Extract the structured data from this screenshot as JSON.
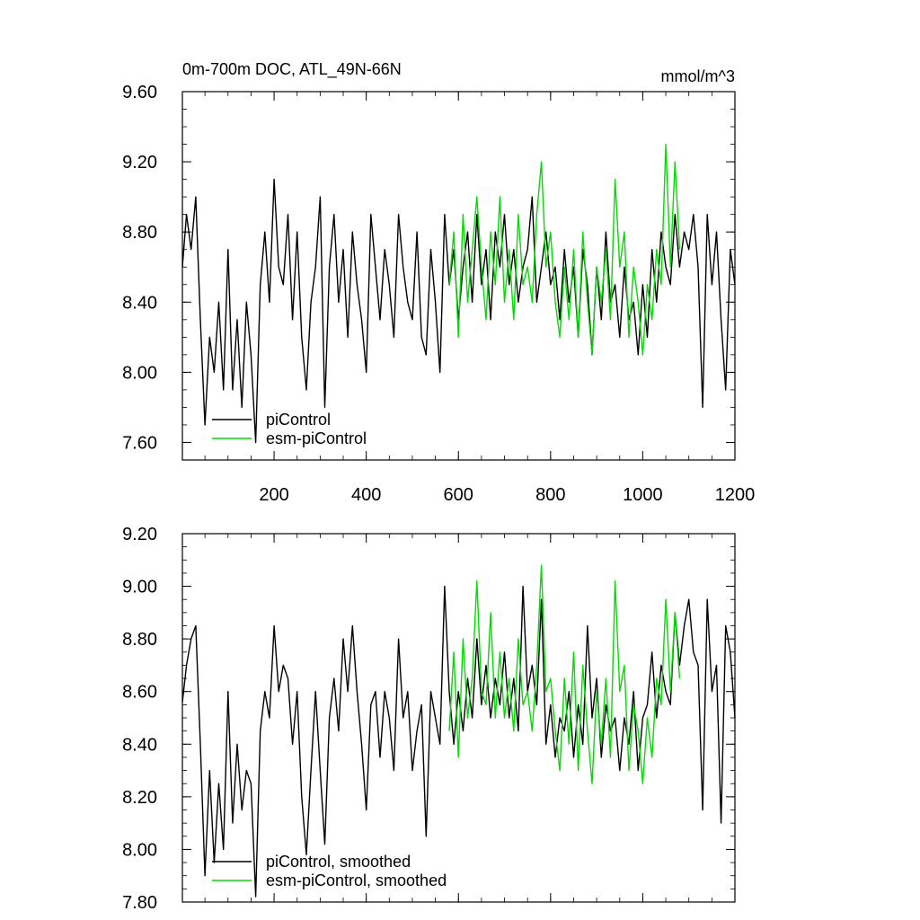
{
  "figure": {
    "title_left": "0m-700m DOC, ATL_49N-66N",
    "title_right": "mmol/m^3"
  },
  "chart_data": [
    {
      "type": "line",
      "title": "0m-700m DOC, ATL_49N-66N",
      "units": "mmol/m^3",
      "xlim": [
        1,
        1200
      ],
      "ylim": [
        7.5,
        9.6
      ],
      "xticks": [
        200,
        400,
        600,
        800,
        1000,
        1200
      ],
      "xtick_labels": [
        "200",
        "400",
        "600",
        "800",
        "1000",
        "1200"
      ],
      "yticks": [
        7.6,
        8.0,
        8.4,
        8.8,
        9.2,
        9.6
      ],
      "ytick_labels": [
        "7.60",
        "8.00",
        "8.40",
        "8.80",
        "9.20",
        "9.60"
      ],
      "grid": false,
      "legend_position": "bottom-left",
      "series": [
        {
          "name": "piControl",
          "color": "#000000",
          "x": [
            1,
            10,
            20,
            30,
            40,
            50,
            60,
            70,
            80,
            90,
            100,
            110,
            120,
            130,
            140,
            150,
            160,
            170,
            180,
            190,
            200,
            210,
            220,
            230,
            240,
            250,
            260,
            270,
            280,
            290,
            300,
            310,
            320,
            330,
            340,
            350,
            360,
            370,
            380,
            390,
            400,
            410,
            420,
            430,
            440,
            450,
            460,
            470,
            480,
            490,
            500,
            510,
            520,
            530,
            540,
            550,
            560,
            570,
            580,
            590,
            600,
            610,
            620,
            630,
            640,
            650,
            660,
            670,
            680,
            690,
            700,
            710,
            720,
            730,
            740,
            750,
            760,
            770,
            780,
            790,
            800,
            810,
            820,
            830,
            840,
            850,
            860,
            870,
            880,
            890,
            900,
            910,
            920,
            930,
            940,
            950,
            960,
            970,
            980,
            990,
            1000,
            1010,
            1020,
            1030,
            1040,
            1050,
            1060,
            1070,
            1080,
            1090,
            1100,
            1110,
            1120,
            1130,
            1140,
            1150,
            1160,
            1170,
            1180,
            1190,
            1200
          ],
          "y": [
            8.6,
            8.9,
            8.7,
            9.0,
            8.3,
            7.7,
            8.2,
            8.0,
            8.4,
            7.9,
            8.7,
            7.9,
            8.3,
            7.8,
            8.4,
            8.1,
            7.6,
            8.5,
            8.8,
            8.4,
            9.1,
            8.6,
            8.5,
            8.9,
            8.3,
            8.8,
            8.2,
            7.9,
            8.4,
            8.6,
            9.0,
            7.8,
            8.6,
            8.9,
            8.4,
            8.7,
            8.2,
            8.8,
            8.5,
            8.3,
            8.0,
            8.9,
            8.6,
            8.3,
            8.7,
            8.5,
            8.2,
            8.9,
            8.6,
            8.4,
            8.3,
            8.8,
            8.2,
            8.1,
            8.7,
            8.4,
            8.0,
            8.9,
            8.5,
            8.7,
            8.3,
            8.6,
            8.8,
            8.4,
            8.9,
            8.5,
            8.7,
            8.3,
            8.8,
            8.6,
            8.9,
            8.5,
            8.7,
            8.4,
            8.6,
            8.7,
            9.0,
            8.4,
            8.6,
            8.8,
            8.5,
            8.6,
            8.3,
            8.7,
            8.4,
            8.6,
            8.2,
            8.7,
            8.5,
            8.1,
            8.6,
            8.3,
            8.8,
            8.4,
            8.5,
            8.2,
            8.6,
            8.3,
            8.4,
            8.1,
            8.5,
            8.2,
            8.7,
            8.4,
            8.8,
            8.6,
            8.5,
            8.9,
            8.6,
            8.8,
            8.7,
            8.9,
            8.6,
            7.8,
            8.9,
            8.5,
            8.8,
            8.3,
            7.9,
            8.7,
            8.5
          ]
        },
        {
          "name": "esm-piControl",
          "color": "#00dd00",
          "x": [
            580,
            590,
            600,
            610,
            620,
            630,
            640,
            650,
            660,
            670,
            680,
            690,
            700,
            710,
            720,
            730,
            740,
            750,
            760,
            770,
            780,
            790,
            800,
            810,
            820,
            830,
            840,
            850,
            860,
            870,
            880,
            890,
            900,
            910,
            920,
            930,
            940,
            950,
            960,
            970,
            980,
            990,
            1000,
            1010,
            1020,
            1030,
            1040,
            1050,
            1060,
            1070,
            1080
          ],
          "y": [
            8.5,
            8.8,
            8.2,
            8.9,
            8.4,
            8.7,
            9.0,
            8.6,
            8.3,
            8.8,
            8.5,
            9.0,
            8.4,
            8.7,
            8.3,
            8.9,
            8.5,
            8.6,
            8.4,
            8.9,
            9.2,
            8.6,
            8.8,
            8.4,
            8.2,
            8.6,
            8.3,
            8.7,
            8.2,
            8.8,
            8.4,
            8.1,
            8.6,
            8.4,
            8.7,
            8.3,
            9.1,
            8.6,
            8.8,
            8.2,
            8.6,
            8.4,
            8.1,
            8.5,
            8.3,
            8.7,
            8.5,
            9.3,
            8.6,
            9.2,
            8.7
          ]
        }
      ]
    },
    {
      "type": "line",
      "title": "",
      "xlim": [
        1,
        1200
      ],
      "ylim": [
        7.8,
        9.2
      ],
      "xticks": [
        200,
        400,
        600,
        800,
        1000,
        1200
      ],
      "yticks": [
        7.8,
        8.0,
        8.2,
        8.4,
        8.6,
        8.8,
        9.0,
        9.2
      ],
      "ytick_labels": [
        "7.80",
        "8.00",
        "8.20",
        "8.40",
        "8.60",
        "8.80",
        "9.00",
        "9.20"
      ],
      "grid": false,
      "legend_position": "bottom-left",
      "series": [
        {
          "name": "piControl, smoothed",
          "color": "#000000",
          "x": [
            1,
            10,
            20,
            30,
            40,
            50,
            60,
            70,
            80,
            90,
            100,
            110,
            120,
            130,
            140,
            150,
            160,
            170,
            180,
            190,
            200,
            210,
            220,
            230,
            240,
            250,
            260,
            270,
            280,
            290,
            300,
            310,
            320,
            330,
            340,
            350,
            360,
            370,
            380,
            390,
            400,
            410,
            420,
            430,
            440,
            450,
            460,
            470,
            480,
            490,
            500,
            510,
            520,
            530,
            540,
            550,
            560,
            570,
            580,
            590,
            600,
            610,
            620,
            630,
            640,
            650,
            660,
            670,
            680,
            690,
            700,
            710,
            720,
            730,
            740,
            750,
            760,
            770,
            780,
            790,
            800,
            810,
            820,
            830,
            840,
            850,
            860,
            870,
            880,
            890,
            900,
            910,
            920,
            930,
            940,
            950,
            960,
            970,
            980,
            990,
            1000,
            1010,
            1020,
            1030,
            1040,
            1050,
            1060,
            1070,
            1080,
            1090,
            1100,
            1110,
            1120,
            1130,
            1140,
            1150,
            1160,
            1170,
            1180,
            1190,
            1200
          ],
          "y": [
            8.56,
            8.7,
            8.8,
            8.85,
            8.4,
            7.9,
            8.3,
            7.95,
            8.25,
            8.0,
            8.6,
            8.1,
            8.4,
            8.15,
            8.3,
            8.25,
            7.82,
            8.45,
            8.6,
            8.5,
            8.85,
            8.6,
            8.7,
            8.65,
            8.4,
            8.6,
            8.2,
            7.98,
            8.3,
            8.6,
            8.3,
            8.02,
            8.5,
            8.65,
            8.45,
            8.8,
            8.6,
            8.85,
            8.6,
            8.4,
            8.15,
            8.55,
            8.6,
            8.35,
            8.6,
            8.5,
            8.3,
            8.8,
            8.5,
            8.6,
            8.3,
            8.45,
            8.55,
            8.05,
            8.6,
            8.5,
            8.4,
            9.0,
            8.6,
            8.4,
            8.6,
            8.45,
            8.65,
            8.5,
            8.8,
            8.55,
            8.7,
            8.5,
            8.65,
            8.55,
            8.75,
            8.5,
            8.65,
            8.45,
            9.0,
            8.6,
            8.7,
            8.55,
            8.95,
            8.4,
            8.55,
            8.35,
            8.5,
            8.45,
            8.6,
            8.35,
            8.55,
            8.4,
            8.85,
            8.5,
            8.65,
            8.35,
            8.55,
            8.45,
            8.5,
            8.3,
            8.5,
            8.4,
            8.6,
            8.3,
            8.5,
            8.55,
            8.75,
            8.5,
            8.7,
            8.6,
            8.55,
            8.9,
            8.7,
            8.85,
            8.95,
            8.75,
            8.7,
            8.15,
            8.95,
            8.6,
            8.7,
            8.1,
            8.85,
            8.75,
            8.5
          ]
        },
        {
          "name": "esm-piControl, smoothed",
          "color": "#00dd00",
          "x": [
            580,
            590,
            600,
            610,
            620,
            630,
            640,
            650,
            660,
            670,
            680,
            690,
            700,
            710,
            720,
            730,
            740,
            750,
            760,
            770,
            780,
            790,
            800,
            810,
            820,
            830,
            840,
            850,
            860,
            870,
            880,
            890,
            900,
            910,
            920,
            930,
            940,
            950,
            960,
            970,
            980,
            990,
            1000,
            1010,
            1020,
            1030,
            1040,
            1050,
            1060,
            1070,
            1080
          ],
          "y": [
            8.45,
            8.75,
            8.35,
            8.8,
            8.5,
            8.65,
            9.02,
            8.6,
            8.55,
            8.9,
            8.5,
            8.75,
            8.5,
            8.65,
            8.45,
            8.8,
            8.55,
            8.6,
            8.45,
            8.7,
            9.08,
            8.6,
            8.65,
            8.45,
            8.3,
            8.65,
            8.4,
            8.75,
            8.3,
            8.7,
            8.45,
            8.25,
            8.6,
            8.4,
            8.65,
            8.35,
            9.02,
            8.6,
            8.7,
            8.3,
            8.55,
            8.45,
            8.25,
            8.5,
            8.35,
            8.65,
            8.55,
            8.95,
            8.6,
            8.9,
            8.65
          ]
        }
      ]
    }
  ]
}
